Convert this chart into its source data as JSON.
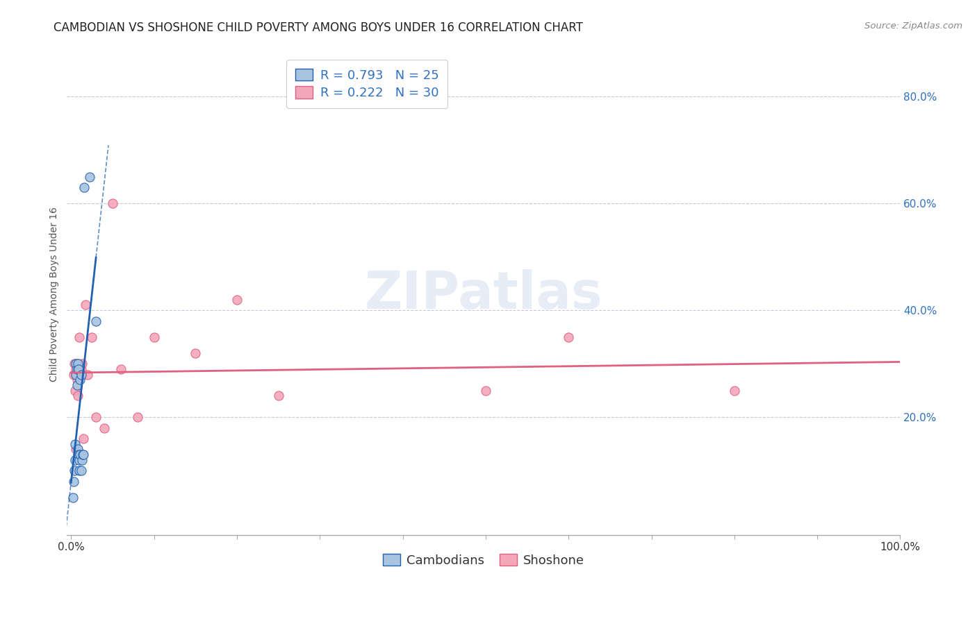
{
  "title": "CAMBODIAN VS SHOSHONE CHILD POVERTY AMONG BOYS UNDER 16 CORRELATION CHART",
  "source": "Source: ZipAtlas.com",
  "ylabel": "Child Poverty Among Boys Under 16",
  "watermark": "ZIPatlas",
  "cambodian_R": 0.793,
  "cambodian_N": 25,
  "shoshone_R": 0.222,
  "shoshone_N": 30,
  "xlim": [
    -0.005,
    1.0
  ],
  "ylim": [
    -0.02,
    0.88
  ],
  "xtick_positions": [
    0.0,
    1.0
  ],
  "xtick_labels": [
    "0.0%",
    "100.0%"
  ],
  "ytick_positions": [
    0.2,
    0.4,
    0.6,
    0.8
  ],
  "ytick_labels": [
    "20.0%",
    "40.0%",
    "60.0%",
    "80.0%"
  ],
  "grid_yticks": [
    0.2,
    0.4,
    0.6,
    0.8
  ],
  "cambodian_color": "#a8c4e0",
  "shoshone_color": "#f4a7b9",
  "cambodian_line_color": "#2060b0",
  "shoshone_line_color": "#e06080",
  "legend_text_color": "#3070c0",
  "background_color": "#ffffff",
  "grid_color": "#c8c8d8",
  "marker_size": 90,
  "title_fontsize": 12,
  "axis_label_fontsize": 10,
  "tick_fontsize": 11,
  "legend_fontsize": 13,
  "cambodian_x": [
    0.002,
    0.003,
    0.004,
    0.005,
    0.005,
    0.006,
    0.006,
    0.007,
    0.007,
    0.008,
    0.008,
    0.009,
    0.009,
    0.01,
    0.01,
    0.011,
    0.011,
    0.012,
    0.012,
    0.013,
    0.014,
    0.015,
    0.016,
    0.022,
    0.03
  ],
  "cambodian_y": [
    0.05,
    0.08,
    0.1,
    0.12,
    0.15,
    0.28,
    0.3,
    0.26,
    0.29,
    0.3,
    0.14,
    0.13,
    0.29,
    0.1,
    0.12,
    0.13,
    0.27,
    0.1,
    0.28,
    0.12,
    0.13,
    0.13,
    0.63,
    0.65,
    0.38
  ],
  "shoshone_x": [
    0.003,
    0.004,
    0.005,
    0.006,
    0.006,
    0.007,
    0.007,
    0.008,
    0.008,
    0.009,
    0.01,
    0.011,
    0.012,
    0.013,
    0.015,
    0.017,
    0.02,
    0.025,
    0.03,
    0.04,
    0.05,
    0.06,
    0.08,
    0.1,
    0.15,
    0.2,
    0.25,
    0.5,
    0.6,
    0.8
  ],
  "shoshone_y": [
    0.28,
    0.3,
    0.25,
    0.14,
    0.29,
    0.27,
    0.28,
    0.29,
    0.24,
    0.3,
    0.35,
    0.13,
    0.29,
    0.3,
    0.16,
    0.41,
    0.28,
    0.35,
    0.2,
    0.18,
    0.6,
    0.29,
    0.2,
    0.35,
    0.32,
    0.42,
    0.24,
    0.25,
    0.35,
    0.25
  ]
}
